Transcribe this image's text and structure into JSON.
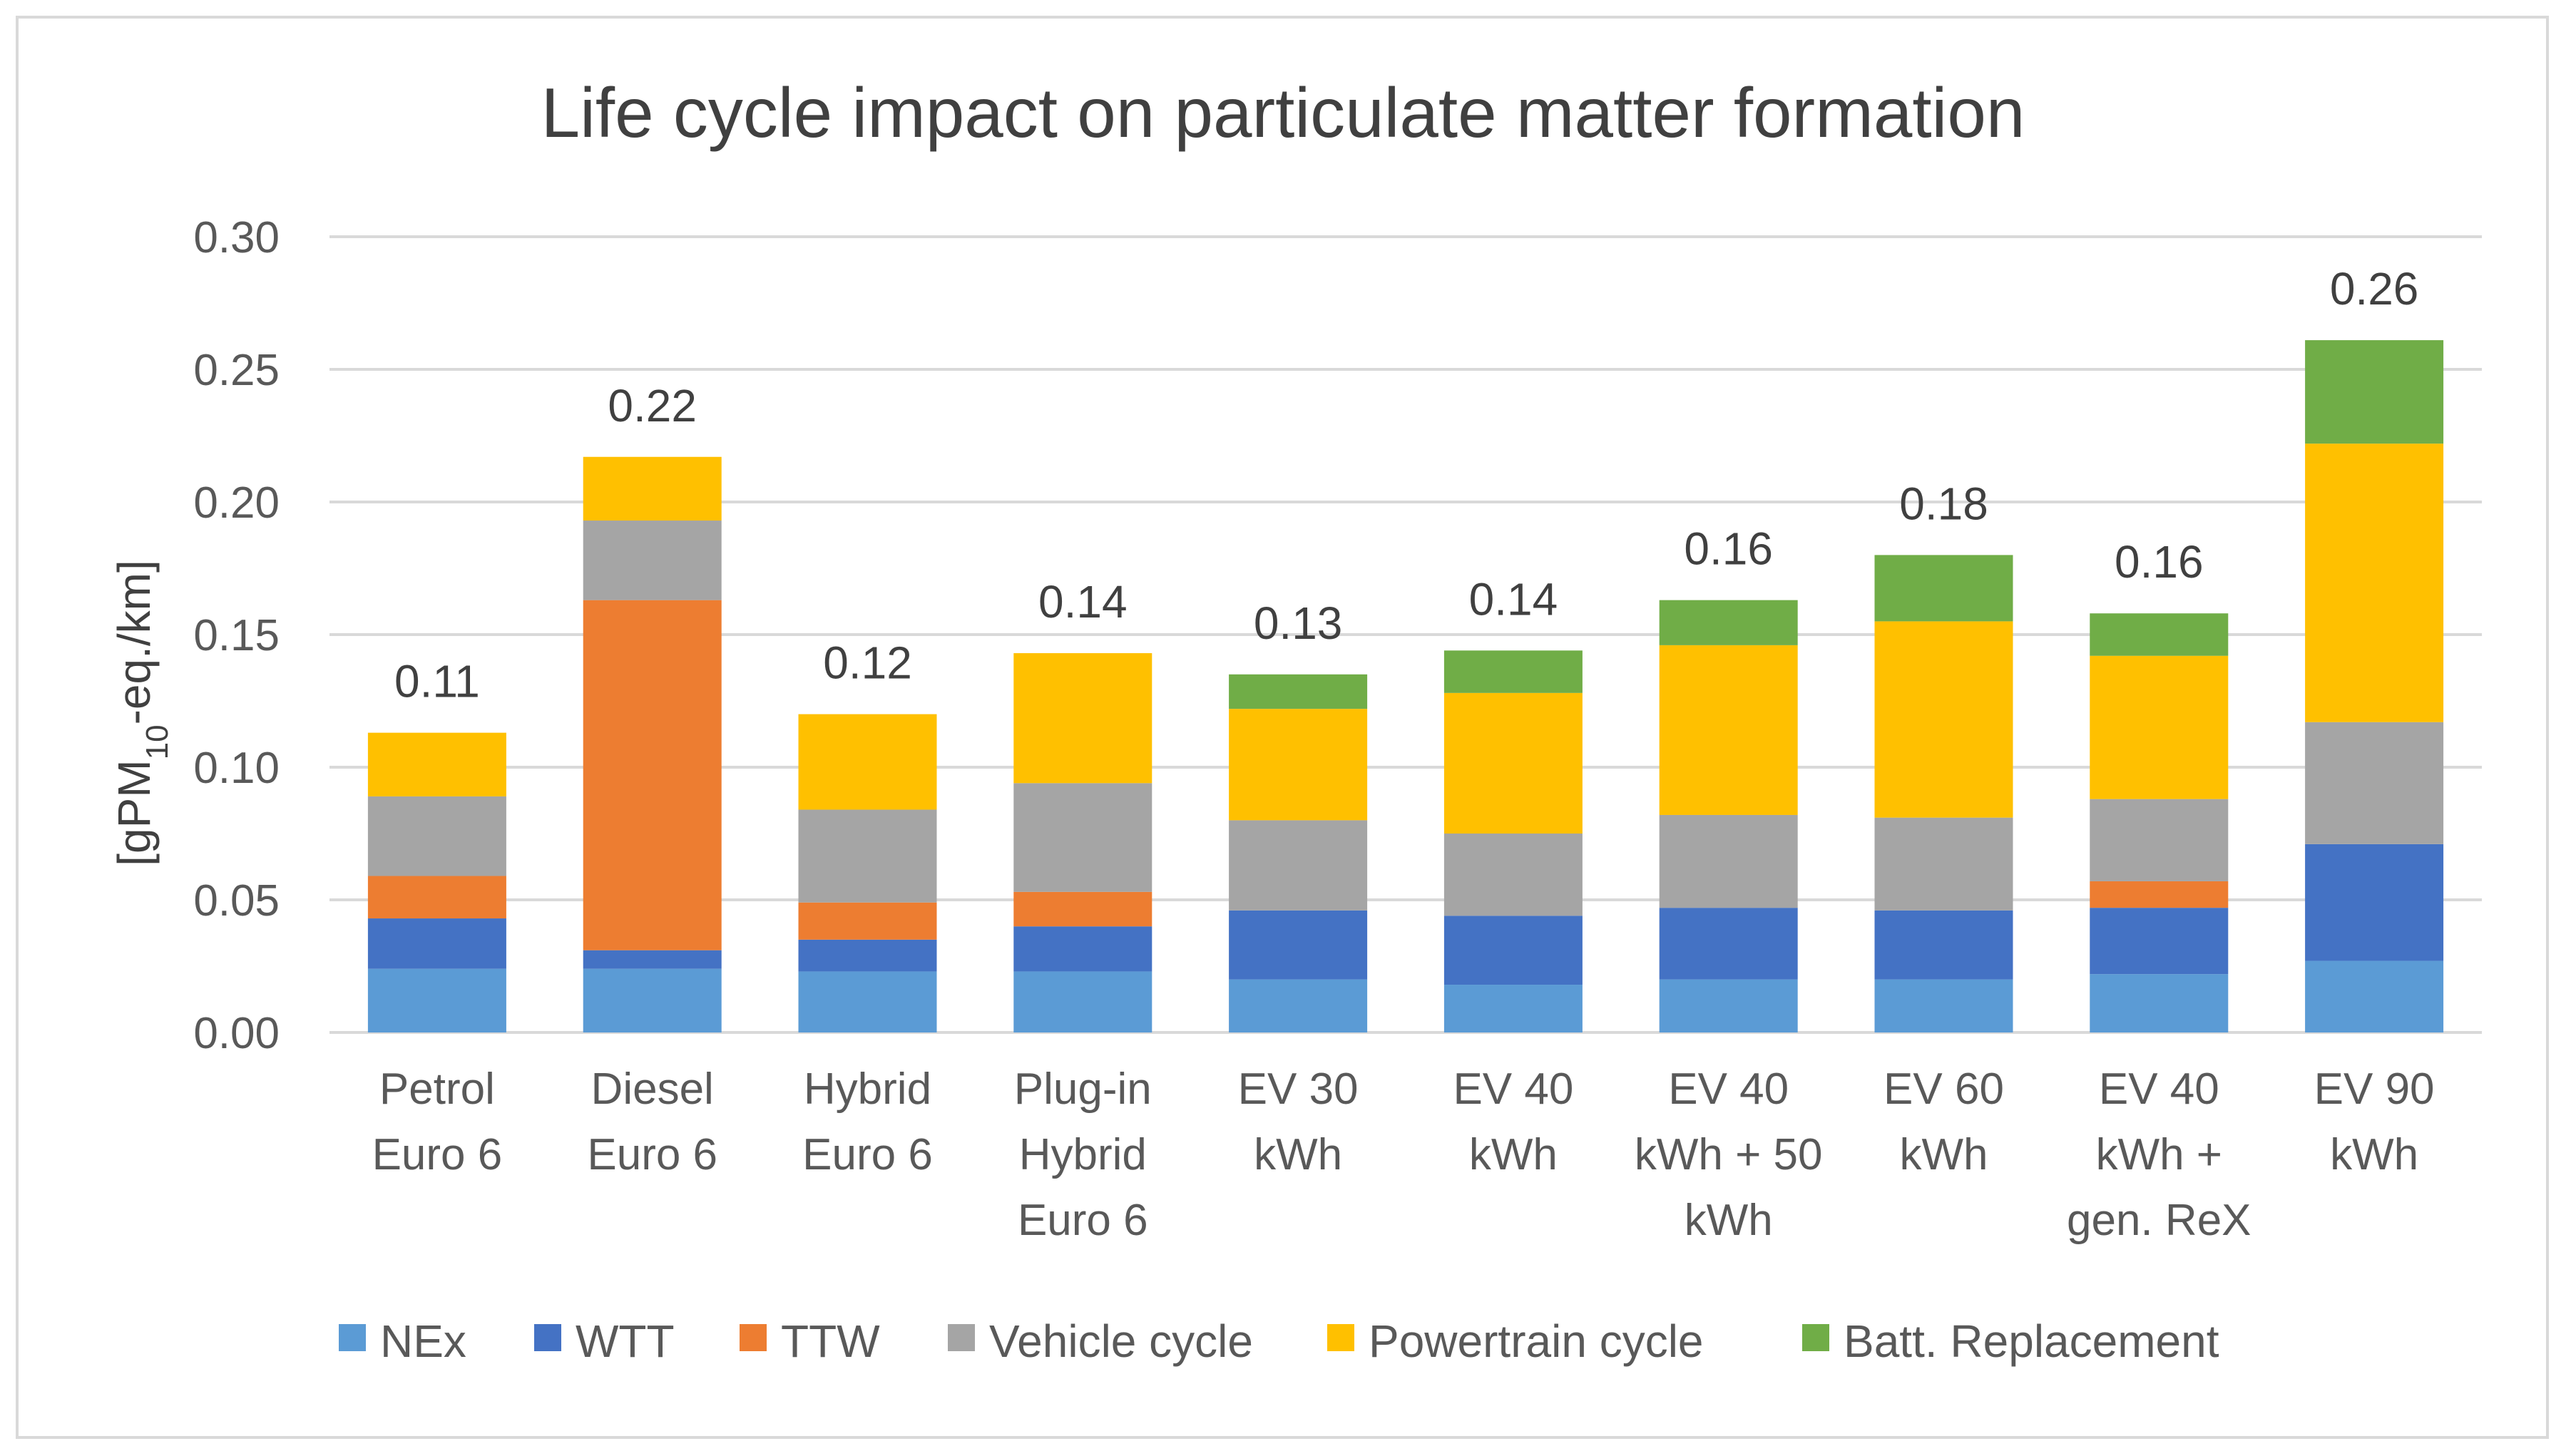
{
  "chart_data": {
    "type": "bar",
    "stacked": true,
    "title": "Life cycle impact on particulate matter formation",
    "ylabel": {
      "prefix": "[gPM",
      "subscript": "10",
      "suffix": "-eq./km]"
    },
    "xlabel": "",
    "ylim": [
      0,
      0.3
    ],
    "yticks": [
      "0.00",
      "0.05",
      "0.10",
      "0.15",
      "0.20",
      "0.25",
      "0.30"
    ],
    "grid": true,
    "legend_position": "bottom",
    "categories": [
      [
        "Petrol",
        "Euro 6"
      ],
      [
        "Diesel",
        "Euro 6"
      ],
      [
        "Hybrid",
        "Euro 6"
      ],
      [
        "Plug-in",
        "Hybrid",
        "Euro 6"
      ],
      [
        "EV 30",
        "kWh"
      ],
      [
        "EV 40",
        "kWh"
      ],
      [
        "EV 40",
        "kWh + 50",
        "kWh"
      ],
      [
        "EV 60",
        "kWh"
      ],
      [
        "EV 40",
        "kWh +",
        "gen. ReX"
      ],
      [
        "EV 90",
        "kWh"
      ]
    ],
    "totals": [
      "0.11",
      "0.22",
      "0.12",
      "0.14",
      "0.13",
      "0.14",
      "0.16",
      "0.18",
      "0.16",
      "0.26"
    ],
    "series": [
      {
        "name": "NEx",
        "color": "#5b9bd5",
        "values": [
          0.024,
          0.024,
          0.023,
          0.023,
          0.02,
          0.018,
          0.02,
          0.02,
          0.022,
          0.027
        ]
      },
      {
        "name": "WTT",
        "color": "#4472c4",
        "values": [
          0.019,
          0.007,
          0.012,
          0.017,
          0.026,
          0.026,
          0.027,
          0.026,
          0.025,
          0.044
        ]
      },
      {
        "name": "TTW",
        "color": "#ed7d31",
        "values": [
          0.016,
          0.132,
          0.014,
          0.013,
          0.0,
          0.0,
          0.0,
          0.0,
          0.01,
          0.0
        ]
      },
      {
        "name": "Vehicle cycle",
        "color": "#a5a5a5",
        "values": [
          0.03,
          0.03,
          0.035,
          0.041,
          0.034,
          0.031,
          0.035,
          0.035,
          0.031,
          0.046
        ]
      },
      {
        "name": "Powertrain cycle",
        "color": "#ffc000",
        "values": [
          0.024,
          0.024,
          0.036,
          0.049,
          0.042,
          0.053,
          0.064,
          0.074,
          0.054,
          0.105
        ]
      },
      {
        "name": "Batt. Replacement",
        "color": "#70ad47",
        "values": [
          0.0,
          0.0,
          0.0,
          0.0,
          0.013,
          0.016,
          0.017,
          0.025,
          0.016,
          0.039
        ]
      }
    ]
  }
}
